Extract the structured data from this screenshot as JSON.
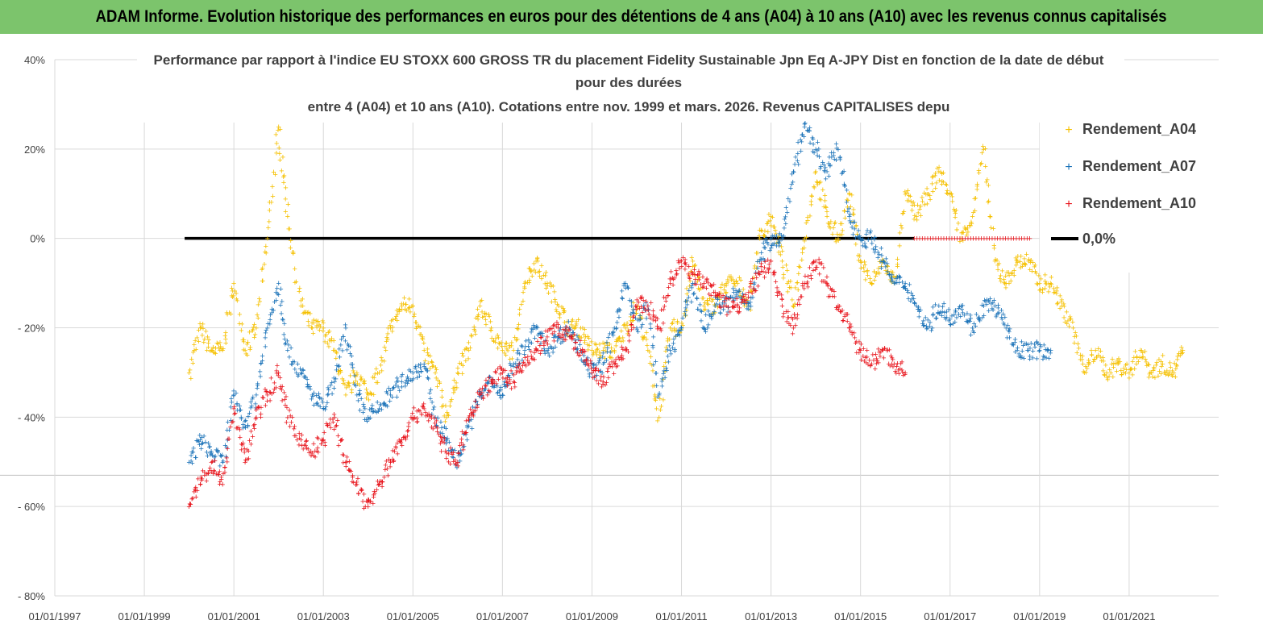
{
  "header": {
    "banner": "ADAM Informe. Evolution historique des performances en euros pour des détentions de 4 ans (A04) à 10 ans (A10) avec les revenus connus capitalisés"
  },
  "colors": {
    "banner_bg": "#7cc46c",
    "a04": "#f5c000",
    "a07": "#1a72b8",
    "a10": "#e8141c",
    "zero_line": "#000000",
    "grid": "#d9d9d9"
  },
  "chart_data": {
    "type": "scatter",
    "title_lines": [
      "Performance par rapport à l'indice EU STOXX 600 GROSS TR  du placement Fidelity Sustainable Jpn Eq A-JPY Dist en fonction de la date de début",
      "pour des durées",
      "entre 4 (A04) et 10 ans (A10). Cotations entre nov. 1999 et mars. 2026. Revenus CAPITALISES depu"
    ],
    "x_tick_labels": [
      "01/01/1997",
      "01/01/1999",
      "01/01/2001",
      "01/01/2003",
      "01/01/2005",
      "01/01/2007",
      "01/01/2009",
      "01/01/2011",
      "01/01/2013",
      "01/01/2015",
      "01/01/2017",
      "01/01/2019",
      "01/01/2021"
    ],
    "x_range": [
      1997.0,
      2023.0
    ],
    "y_tick_labels": [
      "40%",
      "20%",
      "0%",
      "- 20%",
      "- 40%",
      "- 60%",
      "- 80%"
    ],
    "y_ticks": [
      40,
      20,
      0,
      -20,
      -40,
      -60,
      -80
    ],
    "y_range": [
      -80,
      40
    ],
    "grid": true,
    "legend_position": "right",
    "reference_line": {
      "label": "0,0%",
      "value": 0,
      "x_start": 1999.9,
      "x_end": 2016.2
    },
    "series": [
      {
        "name": "Rendement_A04",
        "x": [
          2000.0,
          2000.25,
          2000.5,
          2000.75,
          2001.0,
          2001.25,
          2001.5,
          2001.75,
          2002.0,
          2002.2,
          2002.5,
          2002.75,
          2003.0,
          2003.25,
          2003.5,
          2003.75,
          2004.0,
          2004.25,
          2004.5,
          2004.75,
          2005.0,
          2005.25,
          2005.5,
          2005.75,
          2006.0,
          2006.25,
          2006.5,
          2006.75,
          2007.0,
          2007.25,
          2007.5,
          2007.75,
          2008.0,
          2008.25,
          2008.5,
          2008.75,
          2009.0,
          2009.25,
          2009.5,
          2009.75,
          2010.0,
          2010.25,
          2010.5,
          2010.75,
          2011.0,
          2011.25,
          2011.5,
          2011.75,
          2012.0,
          2012.25,
          2012.5,
          2012.75,
          2013.0,
          2013.25,
          2013.5,
          2013.75,
          2014.0,
          2014.25,
          2014.5,
          2014.75,
          2015.0,
          2015.25,
          2015.5,
          2015.75,
          2016.0,
          2016.25,
          2016.5,
          2016.75,
          2017.0,
          2017.25,
          2017.5,
          2017.75,
          2018.0,
          2018.25,
          2018.5,
          2018.75,
          2019.0,
          2019.25,
          2019.5,
          2019.75,
          2020.0,
          2020.25,
          2020.5,
          2020.75,
          2021.0,
          2021.25,
          2021.5,
          2021.75,
          2022.0,
          2022.2
        ],
        "values": [
          -30,
          -20,
          -25,
          -25,
          -10,
          -25,
          -20,
          0,
          25,
          5,
          -15,
          -20,
          -20,
          -25,
          -35,
          -30,
          -35,
          -30,
          -20,
          -15,
          -15,
          -25,
          -30,
          -40,
          -30,
          -25,
          -15,
          -20,
          -25,
          -25,
          -10,
          -5,
          -10,
          -15,
          -20,
          -20,
          -25,
          -25,
          -25,
          -20,
          -15,
          -25,
          -40,
          -20,
          -20,
          -5,
          -15,
          -15,
          -10,
          -10,
          -15,
          0,
          5,
          -5,
          -15,
          0,
          15,
          5,
          0,
          10,
          -5,
          -10,
          -5,
          -10,
          10,
          5,
          10,
          15,
          10,
          0,
          5,
          20,
          -5,
          -10,
          -5,
          -5,
          -10,
          -10,
          -15,
          -20,
          -30,
          -25,
          -30,
          -28,
          -30,
          -25,
          -30,
          -28,
          -30,
          -25
        ]
      },
      {
        "name": "Rendement_A07",
        "x": [
          2000.0,
          2000.25,
          2000.5,
          2000.75,
          2001.0,
          2001.25,
          2001.5,
          2001.75,
          2002.0,
          2002.2,
          2002.5,
          2002.75,
          2003.0,
          2003.25,
          2003.5,
          2003.75,
          2004.0,
          2004.25,
          2004.5,
          2004.75,
          2005.0,
          2005.25,
          2005.5,
          2005.75,
          2006.0,
          2006.25,
          2006.5,
          2006.75,
          2007.0,
          2007.25,
          2007.5,
          2007.75,
          2008.0,
          2008.25,
          2008.5,
          2008.75,
          2009.0,
          2009.25,
          2009.5,
          2009.75,
          2010.0,
          2010.25,
          2010.5,
          2010.75,
          2011.0,
          2011.25,
          2011.5,
          2011.75,
          2012.0,
          2012.25,
          2012.5,
          2012.75,
          2013.0,
          2013.25,
          2013.5,
          2013.75,
          2014.0,
          2014.25,
          2014.5,
          2014.75,
          2015.0,
          2015.25,
          2015.5,
          2015.75,
          2016.0,
          2016.25,
          2016.5,
          2016.75,
          2017.0,
          2017.25,
          2017.5,
          2017.75,
          2018.0,
          2018.25,
          2018.5,
          2018.75,
          2019.0,
          2019.25
        ],
        "values": [
          -50,
          -45,
          -48,
          -50,
          -35,
          -42,
          -35,
          -20,
          -10,
          -25,
          -30,
          -35,
          -38,
          -32,
          -20,
          -35,
          -40,
          -38,
          -35,
          -32,
          -30,
          -28,
          -40,
          -45,
          -50,
          -42,
          -35,
          -32,
          -35,
          -28,
          -25,
          -20,
          -25,
          -22,
          -20,
          -25,
          -30,
          -28,
          -20,
          -10,
          -20,
          -15,
          -35,
          -25,
          -20,
          -10,
          -20,
          -15,
          -15,
          -12,
          -15,
          -5,
          0,
          0,
          15,
          25,
          20,
          15,
          20,
          5,
          0,
          0,
          -5,
          -10,
          -10,
          -15,
          -20,
          -15,
          -18,
          -15,
          -20,
          -15,
          -15,
          -20,
          -25,
          -25,
          -25,
          -25
        ]
      },
      {
        "name": "Rendement_A10",
        "x": [
          2000.0,
          2000.25,
          2000.5,
          2000.75,
          2001.0,
          2001.25,
          2001.5,
          2001.75,
          2002.0,
          2002.2,
          2002.5,
          2002.75,
          2003.0,
          2003.25,
          2003.5,
          2003.75,
          2004.0,
          2004.25,
          2004.5,
          2004.75,
          2005.0,
          2005.25,
          2005.5,
          2005.75,
          2006.0,
          2006.25,
          2006.5,
          2006.75,
          2007.0,
          2007.25,
          2007.5,
          2007.75,
          2008.0,
          2008.25,
          2008.5,
          2008.75,
          2009.0,
          2009.25,
          2009.5,
          2009.75,
          2010.0,
          2010.25,
          2010.5,
          2010.75,
          2011.0,
          2011.25,
          2011.5,
          2011.75,
          2012.0,
          2012.25,
          2012.5,
          2012.75,
          2013.0,
          2013.25,
          2013.5,
          2013.75,
          2014.0,
          2014.25,
          2014.5,
          2014.75,
          2015.0,
          2015.25,
          2015.5,
          2015.75,
          2016.0
        ],
        "values": [
          -60,
          -55,
          -50,
          -55,
          -38,
          -50,
          -40,
          -35,
          -30,
          -40,
          -45,
          -48,
          -45,
          -40,
          -50,
          -55,
          -60,
          -55,
          -50,
          -45,
          -40,
          -38,
          -42,
          -48,
          -50,
          -40,
          -35,
          -32,
          -30,
          -32,
          -28,
          -25,
          -22,
          -20,
          -22,
          -25,
          -30,
          -32,
          -28,
          -25,
          -15,
          -15,
          -20,
          -10,
          -5,
          -8,
          -10,
          -12,
          -15,
          -15,
          -12,
          -8,
          -5,
          -15,
          -20,
          -10,
          -5,
          -10,
          -15,
          -20,
          -25,
          -28,
          -25,
          -28,
          -30
        ]
      }
    ]
  }
}
